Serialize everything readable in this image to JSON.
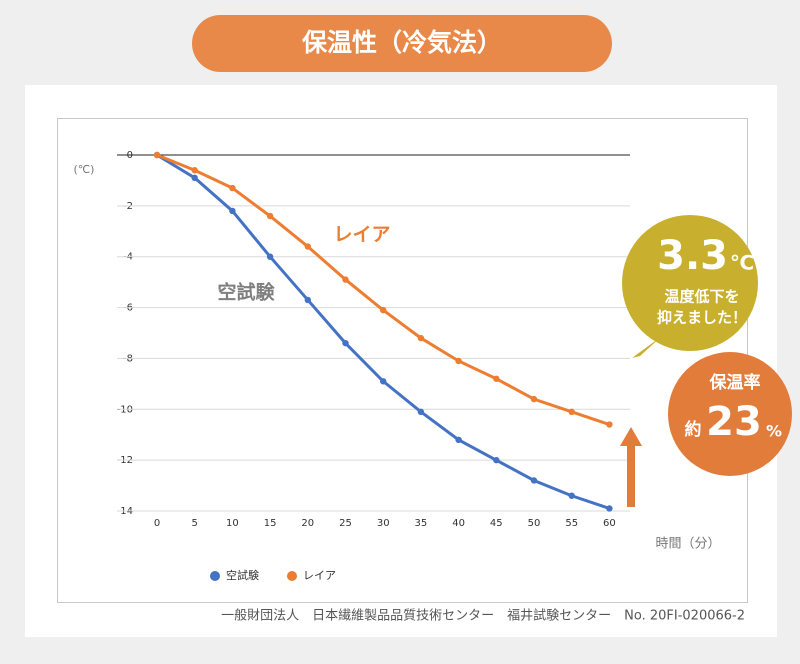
{
  "chart_data": {
    "type": "line",
    "title": "保温性（冷気法）",
    "y_label": "(℃)",
    "x_label": "時間（分）",
    "categories": [
      "0",
      "5",
      "10",
      "15",
      "20",
      "25",
      "30",
      "35",
      "40",
      "45",
      "50",
      "55",
      "60"
    ],
    "series": [
      {
        "name": "空試験",
        "color": "#4472c4",
        "values": [
          0,
          -0.9,
          -2.2,
          -4.0,
          -5.7,
          -7.4,
          -8.9,
          -10.1,
          -11.2,
          -12.0,
          -12.8,
          -13.4,
          -13.9
        ]
      },
      {
        "name": "レイア",
        "color": "#ed7d31",
        "values": [
          0,
          -0.6,
          -1.3,
          -2.4,
          -3.6,
          -4.9,
          -6.1,
          -7.2,
          -8.1,
          -8.8,
          -9.6,
          -10.1,
          -10.6
        ]
      }
    ],
    "ylim": [
      -14,
      0
    ],
    "yticks": [
      0,
      -2,
      -4,
      -6,
      -8,
      -10,
      -12,
      -14
    ],
    "grid": true,
    "annotations": [
      {
        "text": "レイア",
        "color": "#ed7d31"
      },
      {
        "text": "空試験",
        "color": "#7f7f7f"
      }
    ]
  },
  "badges": [
    {
      "lines": [
        "3.3",
        "℃",
        "温度低下を",
        "抑えました！"
      ],
      "color": "#c8b02e"
    },
    {
      "lines": [
        "保温率",
        "約",
        "23",
        "%"
      ],
      "color": "#e27c3a"
    }
  ],
  "source": "一般財団法人　日本繊維製品品質技術センター　福井試験センター　No. 20FI-020066-2"
}
